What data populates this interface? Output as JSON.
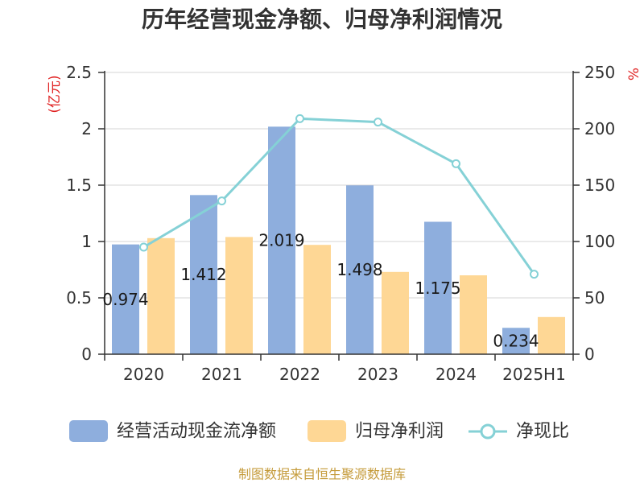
{
  "chart_data": {
    "type": "bar",
    "title": "历年经营现金净额、归母净利润情况",
    "categories": [
      "2020",
      "2021",
      "2022",
      "2023",
      "2024",
      "2025H1"
    ],
    "y_axis": {
      "label": "(亿元)",
      "range": [
        0,
        2.5
      ],
      "ticks": [
        0,
        0.5,
        1,
        1.5,
        2,
        2.5
      ],
      "label_color": "#e02020"
    },
    "y2_axis": {
      "label": "%",
      "range": [
        0,
        250
      ],
      "ticks": [
        0,
        50,
        100,
        150,
        200,
        250
      ],
      "label_color": "#e02020"
    },
    "series": [
      {
        "name": "经营活动现金流净额",
        "type": "bar",
        "axis": "left",
        "color": "#8eaedd",
        "values": [
          0.974,
          1.412,
          2.019,
          1.498,
          1.175,
          0.234
        ],
        "data_labels": true
      },
      {
        "name": "归母净利润",
        "type": "bar",
        "axis": "left",
        "color": "#fed795",
        "values": [
          1.03,
          1.04,
          0.97,
          0.73,
          0.7,
          0.33
        ],
        "data_labels": false
      },
      {
        "name": "净现比",
        "type": "line",
        "axis": "right",
        "color": "#85d1d6",
        "values": [
          95,
          136,
          209,
          206,
          169,
          71
        ],
        "data_labels": false
      }
    ],
    "grid": true,
    "legend_position": "bottom"
  },
  "footer": {
    "source_note": "制图数据来自恒生聚源数据库",
    "color": "#c59b3b"
  }
}
